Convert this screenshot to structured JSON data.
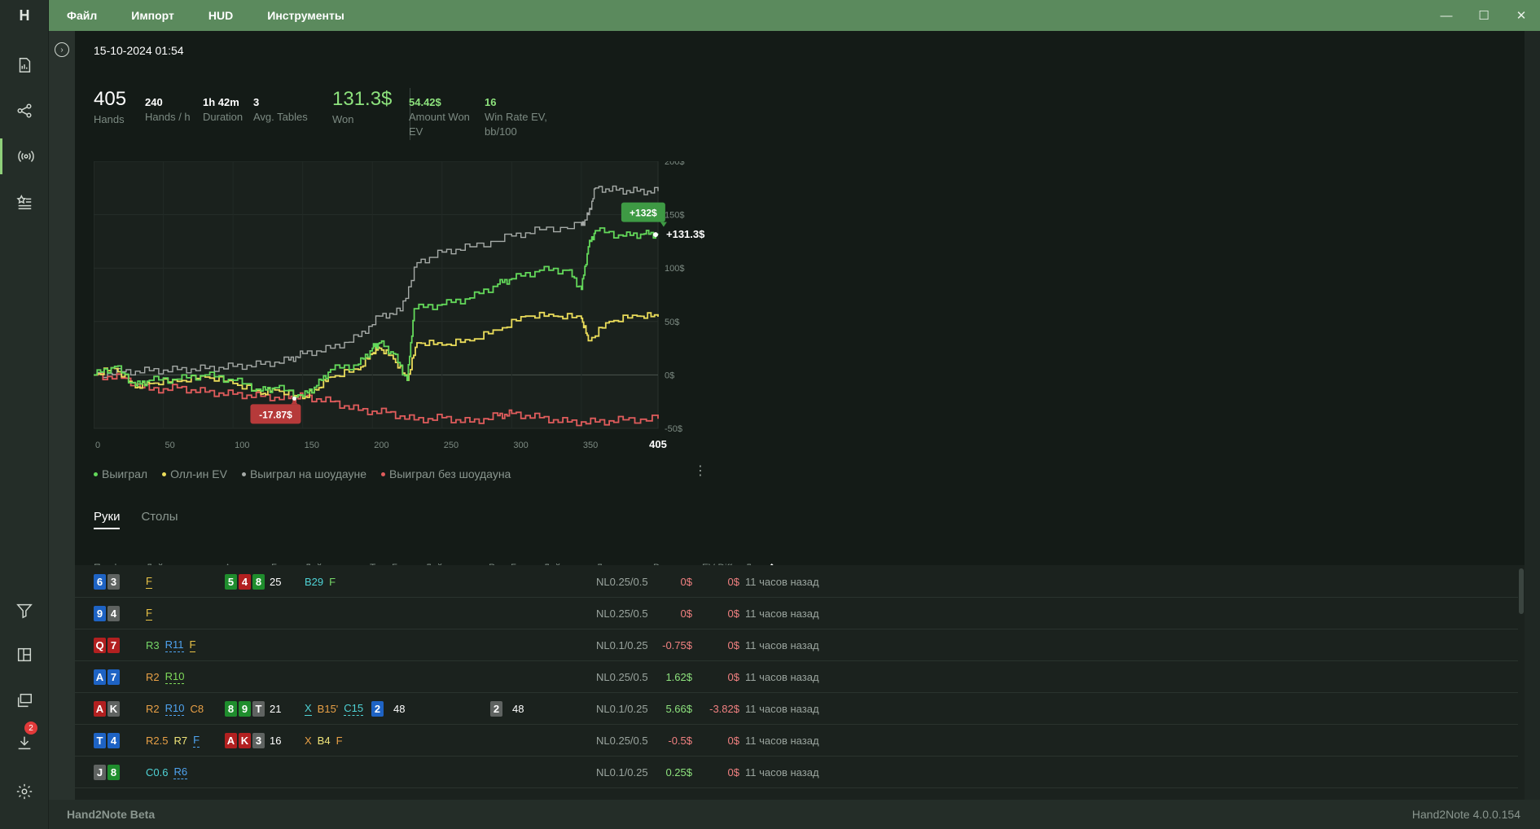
{
  "menu": [
    "Файл",
    "Импорт",
    "HUD",
    "Инструменты"
  ],
  "window_controls": {
    "minimize": "—",
    "maximize": "☐",
    "close": "✕"
  },
  "app_logo": "H",
  "left_rail": {
    "top_icons": [
      "report-icon",
      "share-nodes-icon",
      "broadcast-icon",
      "star-list-icon"
    ],
    "bottom_icons": [
      "filter-icon",
      "layout-icon",
      "layers-icon",
      "download-icon",
      "gear-icon"
    ],
    "download_badge": "2"
  },
  "session": {
    "date": "15-10-2024 01:54"
  },
  "stats": [
    {
      "value": "405",
      "label": "Hands"
    },
    {
      "value": "240",
      "label": "Hands / h"
    },
    {
      "value": "1h 42m",
      "label": "Duration"
    },
    {
      "value": "3",
      "label": "Avg. Tables"
    },
    {
      "value": "131.3$",
      "label": "Won"
    },
    {
      "value": "54.42$",
      "label": "Amount Won EV"
    },
    {
      "value": "16",
      "label": "Win Rate EV, bb/100"
    }
  ],
  "chart_data": {
    "type": "line",
    "xlabel": "",
    "ylabel": "",
    "xlim": [
      0,
      405
    ],
    "ylim": [
      -50,
      200
    ],
    "x_ticks": [
      "0",
      "50",
      "100",
      "150",
      "200",
      "250",
      "300",
      "350",
      "405"
    ],
    "y_ticks": [
      "200$",
      "150$",
      "100$",
      "50$",
      "0$",
      "-50$"
    ],
    "grid": true,
    "legend_position": "bottom",
    "series": [
      {
        "name": "Выиграл на шоудауне",
        "color": "#a5aaa7",
        "x": [
          0,
          20,
          40,
          60,
          80,
          100,
          120,
          140,
          150,
          170,
          190,
          205,
          220,
          232,
          250,
          270,
          300,
          320,
          350,
          355,
          360,
          375,
          390,
          405
        ],
        "y": [
          0,
          3,
          4,
          5,
          6,
          8,
          10,
          14,
          20,
          25,
          36,
          55,
          60,
          105,
          115,
          120,
          130,
          136,
          140,
          150,
          175,
          173,
          172,
          172
        ]
      },
      {
        "name": "Выиграл",
        "color": "#63d85a",
        "x": [
          0,
          15,
          30,
          40,
          60,
          80,
          100,
          120,
          130,
          150,
          160,
          170,
          190,
          200,
          205,
          215,
          225,
          230,
          250,
          270,
          290,
          300,
          320,
          340,
          350,
          355,
          360,
          380,
          395,
          405
        ],
        "y": [
          0,
          8,
          -10,
          -5,
          -4,
          0,
          -5,
          -15,
          -12,
          -20,
          -10,
          5,
          10,
          25,
          30,
          20,
          -5,
          62,
          66,
          72,
          85,
          90,
          98,
          98,
          80,
          120,
          135,
          130,
          132,
          131.3
        ]
      },
      {
        "name": "Олл-ин EV",
        "color": "#eadc5a",
        "x": [
          0,
          15,
          30,
          40,
          60,
          80,
          100,
          120,
          130,
          150,
          160,
          170,
          190,
          200,
          205,
          215,
          225,
          232,
          250,
          270,
          290,
          310,
          330,
          350,
          355,
          370,
          390,
          405
        ],
        "y": [
          0,
          6,
          -12,
          -8,
          -6,
          -2,
          -8,
          -18,
          -14,
          -22,
          -14,
          -2,
          5,
          20,
          25,
          15,
          -5,
          30,
          28,
          32,
          42,
          55,
          55,
          53,
          32,
          50,
          55,
          54.42
        ]
      },
      {
        "name": "Выиграл без шоудауна",
        "color": "#e05c5c",
        "x": [
          0,
          20,
          40,
          60,
          80,
          100,
          120,
          140,
          150,
          170,
          190,
          210,
          230,
          250,
          270,
          290,
          300,
          320,
          340,
          360,
          380,
          405
        ],
        "y": [
          0,
          -3,
          -14,
          -12,
          -16,
          -18,
          -20,
          -22,
          -20,
          -25,
          -33,
          -35,
          -42,
          -40,
          -44,
          -38,
          -36,
          -40,
          -44,
          -44,
          -42,
          -41
        ]
      }
    ],
    "annotations": [
      {
        "text": "+132$",
        "x": 395,
        "y": 150
      },
      {
        "text": "+131.3$",
        "x": 405,
        "y": 131.3
      },
      {
        "text": "-17.87$",
        "x": 130,
        "y": -35
      }
    ]
  },
  "legend": [
    {
      "label": "Выиграл",
      "color": "#63d85a"
    },
    {
      "label": "Олл-ин EV",
      "color": "#eadc5a"
    },
    {
      "label": "Выиграл на шоудауне",
      "color": "#a5aaa7"
    },
    {
      "label": "Выиграл без шоудауна",
      "color": "#e05c5c"
    }
  ],
  "legend_more": "⋮",
  "tabs": [
    "Руки",
    "Столы"
  ],
  "table": {
    "headers": [
      "Префлоп",
      "Действия",
      "Флоп",
      "Банк",
      "Действия",
      "Т..",
      "Банк",
      "Действия",
      "Р..",
      "Банк",
      "Действия",
      "Лимит",
      "Выиграл",
      "EV Diff.",
      "Дата",
      "⭡"
    ],
    "rows": [
      {
        "preflop": [
          [
            "6",
            "d"
          ],
          [
            "3",
            "s"
          ]
        ],
        "pre_act": [
          [
            "F",
            "f"
          ]
        ],
        "flop": [
          [
            "5",
            "c"
          ],
          [
            "4",
            "h"
          ],
          [
            "8",
            "c"
          ]
        ],
        "flop_bank": "25",
        "flop_act": [
          [
            "B29",
            "c"
          ],
          [
            "F",
            "g"
          ]
        ],
        "turn": [],
        "turn_bank": "",
        "turn_act": [],
        "river": [],
        "river_bank": "",
        "river_act": [],
        "limit": "NL0.25/0.5",
        "won": "0$",
        "won_cls": "won-zero",
        "ev": "0$",
        "ev_cls": "won-zero",
        "date": "11 часов назад"
      },
      {
        "preflop": [
          [
            "9",
            "d"
          ],
          [
            "4",
            "s"
          ]
        ],
        "pre_act": [
          [
            "F",
            "f"
          ]
        ],
        "flop": [],
        "flop_bank": "",
        "flop_act": [],
        "turn": [],
        "turn_bank": "",
        "turn_act": [],
        "river": [],
        "river_bank": "",
        "river_act": [],
        "limit": "NL0.25/0.5",
        "won": "0$",
        "won_cls": "won-zero",
        "ev": "0$",
        "ev_cls": "won-zero",
        "date": "11 часов назад"
      },
      {
        "preflop": [
          [
            "Q",
            "h"
          ],
          [
            "7",
            "h"
          ]
        ],
        "pre_act": [
          [
            "R3",
            "g"
          ],
          [
            "R11",
            "b2"
          ],
          [
            "F",
            "f"
          ]
        ],
        "flop": [],
        "flop_bank": "",
        "flop_act": [],
        "turn": [],
        "turn_bank": "",
        "turn_act": [],
        "river": [],
        "river_bank": "",
        "river_act": [],
        "limit": "NL0.1/0.25",
        "won": "-0.75$",
        "won_cls": "won-neg",
        "ev": "0$",
        "ev_cls": "won-zero",
        "date": "11 часов назад"
      },
      {
        "preflop": [
          [
            "A",
            "d"
          ],
          [
            "7",
            "d"
          ]
        ],
        "pre_act": [
          [
            "R2",
            "o"
          ],
          [
            "R10",
            "rb"
          ]
        ],
        "flop": [],
        "flop_bank": "",
        "flop_act": [],
        "turn": [],
        "turn_bank": "",
        "turn_act": [],
        "river": [],
        "river_bank": "",
        "river_act": [],
        "limit": "NL0.25/0.5",
        "won": "1.62$",
        "won_cls": "won-pos",
        "ev": "0$",
        "ev_cls": "won-zero",
        "date": "11 часов назад"
      },
      {
        "preflop": [
          [
            "A",
            "h"
          ],
          [
            "K",
            "s"
          ]
        ],
        "pre_act": [
          [
            "R2",
            "o"
          ],
          [
            "R10",
            "b2"
          ],
          [
            "C8",
            "o"
          ]
        ],
        "flop": [
          [
            "8",
            "c"
          ],
          [
            "9",
            "c"
          ],
          [
            "T",
            "s"
          ]
        ],
        "flop_bank": "21",
        "flop_act": [
          [
            "X",
            "x"
          ],
          [
            "B15'",
            "o"
          ],
          [
            "C15",
            "cu"
          ]
        ],
        "turn": [
          [
            "2",
            "d"
          ]
        ],
        "turn_bank": "48",
        "turn_act": [],
        "river": [
          [
            "2",
            "s"
          ]
        ],
        "river_bank": "48",
        "river_act": [],
        "limit": "NL0.1/0.25",
        "won": "5.66$",
        "won_cls": "won-pos",
        "ev": "-3.82$",
        "ev_cls": "won-neg",
        "date": "11 часов назад"
      },
      {
        "preflop": [
          [
            "T",
            "d"
          ],
          [
            "4",
            "d"
          ]
        ],
        "pre_act": [
          [
            "R2.5",
            "o"
          ],
          [
            "R7",
            "y"
          ],
          [
            "F",
            "b2"
          ]
        ],
        "flop": [
          [
            "A",
            "h"
          ],
          [
            "K",
            "h"
          ],
          [
            "3",
            "s"
          ]
        ],
        "flop_bank": "16",
        "flop_act": [
          [
            "X",
            "o"
          ],
          [
            "B4",
            "y"
          ],
          [
            "F",
            "o"
          ]
        ],
        "turn": [],
        "turn_bank": "",
        "turn_act": [],
        "river": [],
        "river_bank": "",
        "river_act": [],
        "limit": "NL0.25/0.5",
        "won": "-0.5$",
        "won_cls": "won-neg",
        "ev": "0$",
        "ev_cls": "won-zero",
        "date": "11 часов назад"
      },
      {
        "preflop": [
          [
            "J",
            "s"
          ],
          [
            "8",
            "c"
          ]
        ],
        "pre_act": [
          [
            "C0.6",
            "c"
          ],
          [
            "R6",
            "b2"
          ]
        ],
        "flop": [],
        "flop_bank": "",
        "flop_act": [],
        "turn": [],
        "turn_bank": "",
        "turn_act": [],
        "river": [],
        "river_bank": "",
        "river_act": [],
        "limit": "NL0.1/0.25",
        "won": "0.25$",
        "won_cls": "won-pos",
        "ev": "0$",
        "ev_cls": "won-zero",
        "date": "11 часов назад"
      }
    ]
  },
  "status": {
    "left": "Hand2Note Beta",
    "right": "Hand2Note 4.0.0.154"
  }
}
